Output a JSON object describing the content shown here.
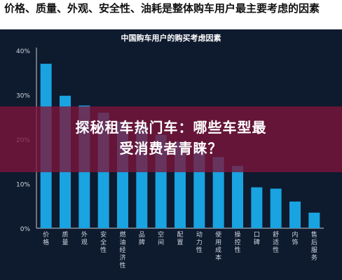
{
  "page": {
    "headline": "价格、质量、外观、安全性、油耗是整体购车用户最主要考虑的因素",
    "banner_line1": "探秘租车热门车：哪些车型最",
    "banner_line2": "受消费者青睐？"
  },
  "colors": {
    "background": "#0e1a2e",
    "bar": "#19a3e0",
    "banner": "#7d143a",
    "text": "#ffffff"
  },
  "chart_data": {
    "type": "bar",
    "title": "中国购车用户的购买考虑因素",
    "categories": [
      "价格",
      "质量",
      "外观",
      "安全性",
      "燃油经济性",
      "品牌",
      "空间",
      "配置",
      "动力性",
      "使用成本",
      "操控性",
      "口碑",
      "舒适性",
      "内饰",
      "售后服务"
    ],
    "values": [
      37,
      29.8,
      27.6,
      26,
      24,
      23,
      21,
      19.5,
      18,
      16,
      14,
      9.2,
      8.9,
      6,
      3.5
    ],
    "yticks": [
      "0%",
      "10%",
      "20%",
      "30%",
      "40%"
    ],
    "ylim": [
      0,
      40
    ],
    "grid": false
  }
}
